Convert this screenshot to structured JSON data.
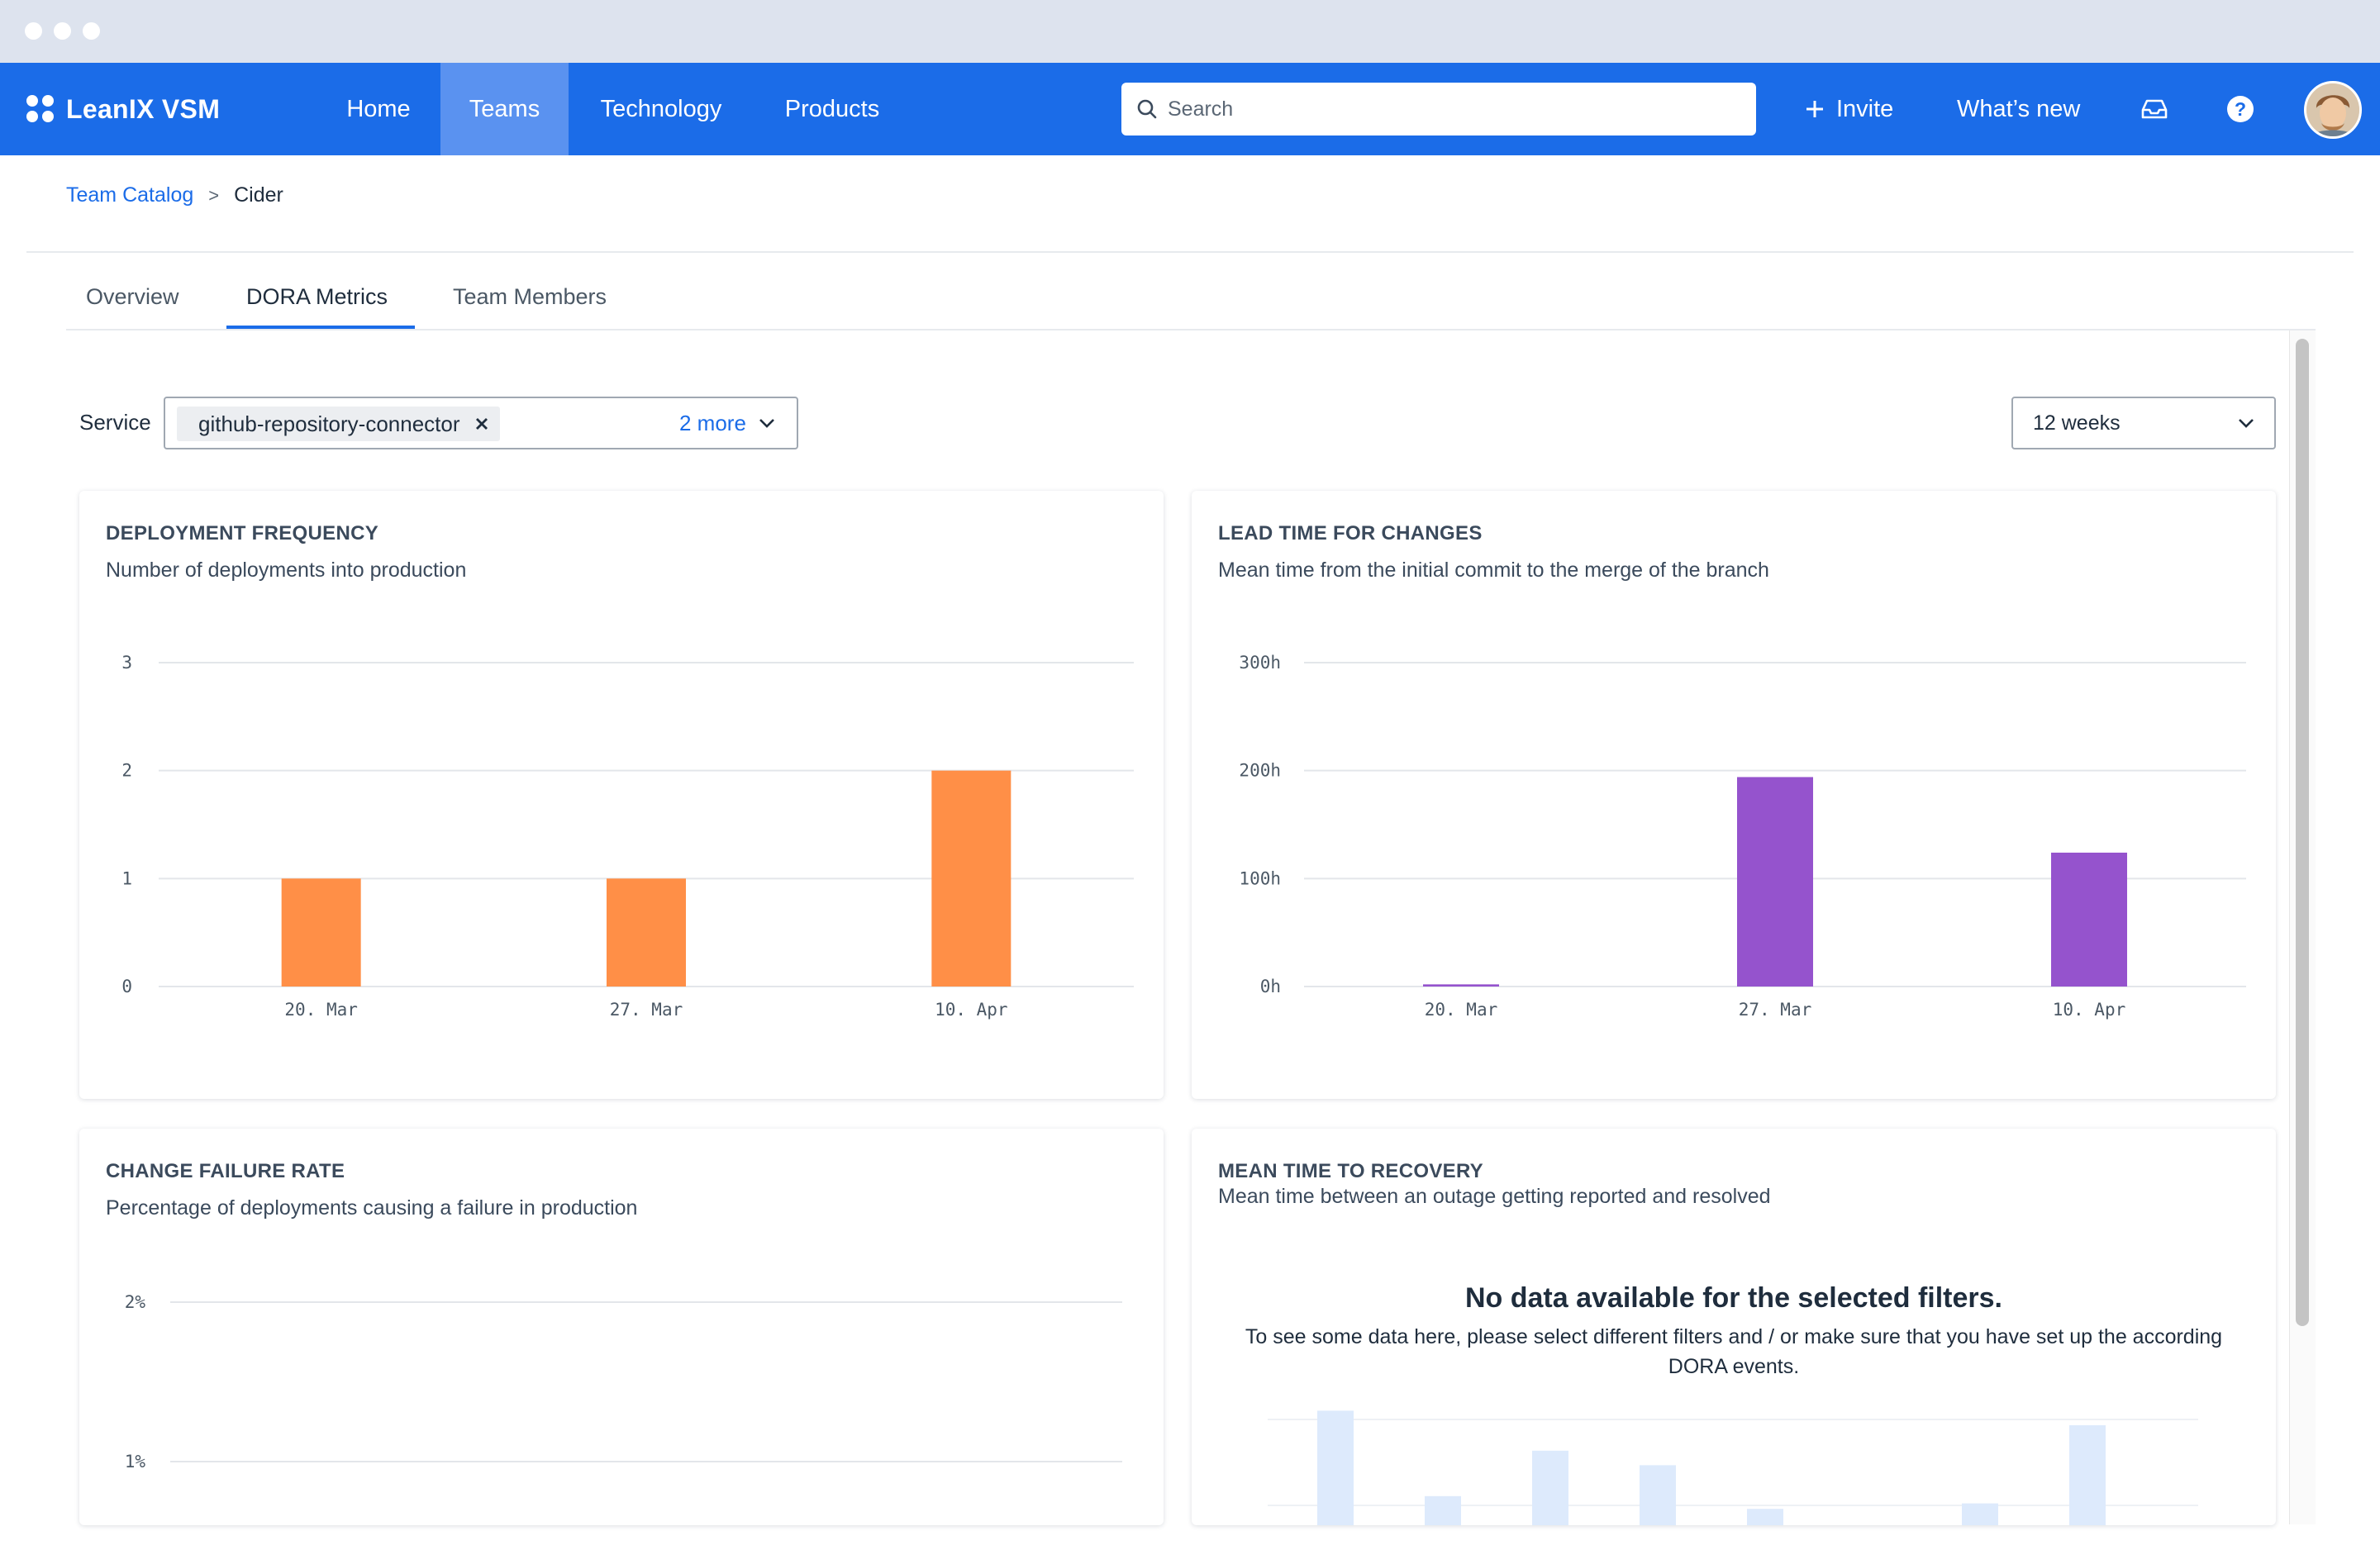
{
  "app": {
    "name": "LeanIX VSM"
  },
  "nav": {
    "items": [
      {
        "label": "Home"
      },
      {
        "label": "Teams"
      },
      {
        "label": "Technology"
      },
      {
        "label": "Products"
      }
    ],
    "active": "Teams",
    "search_placeholder": "Search",
    "invite_label": "Invite",
    "whats_new_label": "What’s new"
  },
  "breadcrumb": {
    "parent": "Team Catalog",
    "separator": ">",
    "current": "Cider"
  },
  "tabs": [
    {
      "label": "Overview"
    },
    {
      "label": "DORA Metrics"
    },
    {
      "label": "Team Members"
    }
  ],
  "active_tab": "DORA Metrics",
  "filters": {
    "service_label": "Service",
    "selected_service": "github-repository-connector",
    "more_label": "2 more",
    "period": "12 weeks"
  },
  "colors": {
    "brand": "#1b6ce8",
    "deployment": "#ff8f47",
    "lead_time": "#9553cd",
    "placeholder_bars": "#ddeafc"
  },
  "cards": {
    "deployment_frequency": {
      "title": "DEPLOYMENT FREQUENCY",
      "subtitle": "Number of deployments into production"
    },
    "lead_time": {
      "title": "LEAD TIME FOR CHANGES",
      "subtitle": "Mean time from the initial commit to the merge of the branch"
    },
    "change_failure_rate": {
      "title": "CHANGE FAILURE RATE",
      "subtitle": "Percentage of deployments causing a failure in production"
    },
    "mttr": {
      "title": "MEAN TIME TO RECOVERY",
      "subtitle": "Mean time between an outage getting reported and resolved",
      "empty_title": "No data available for the selected filters.",
      "empty_text": "To see some data here, please select different filters and / or make sure that you have set up the according DORA events."
    }
  },
  "chart_data": [
    {
      "type": "bar",
      "title": "DEPLOYMENT FREQUENCY",
      "categories": [
        "20. Mar",
        "27. Mar",
        "10. Apr"
      ],
      "values": [
        1,
        1,
        2
      ],
      "yticks": [
        "0",
        "1",
        "2",
        "3"
      ],
      "ylim": [
        0,
        3
      ],
      "grid": true
    },
    {
      "type": "bar",
      "title": "LEAD TIME FOR CHANGES",
      "categories": [
        "20. Mar",
        "27. Mar",
        "10. Apr"
      ],
      "values": [
        2,
        194,
        124
      ],
      "yticks": [
        "0h",
        "100h",
        "200h",
        "300h"
      ],
      "ylim": [
        0,
        300
      ],
      "grid": true
    },
    {
      "type": "bar",
      "title": "CHANGE FAILURE RATE",
      "categories": [],
      "values": [],
      "yticks": [
        "1%",
        "2%"
      ],
      "grid": true
    }
  ]
}
